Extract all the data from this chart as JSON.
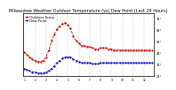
{
  "title": "Milwaukee Weather Outdoor Temperature (vs) Dew Point (Last 24 Hours)",
  "title_fontsize": 3.5,
  "background_color": "#ffffff",
  "grid_color": "#888888",
  "x_tick_labels": [
    "1",
    "",
    "2",
    "",
    "3",
    "",
    "4",
    "",
    "5",
    "",
    "6",
    "",
    "7",
    "",
    "8",
    "",
    "9",
    "",
    "10",
    "",
    "11",
    "",
    "12",
    "",
    "1",
    "",
    "2",
    "",
    "3",
    "",
    "4",
    "",
    "5",
    "",
    "6",
    "",
    "7",
    "",
    "8",
    "",
    "9",
    "",
    "10",
    "",
    "11",
    "",
    "12",
    ""
  ],
  "ylim": [
    24,
    78
  ],
  "y_ticks": [
    24,
    34,
    44,
    54,
    64,
    74
  ],
  "y_tick_labels": [
    "24°",
    "34°",
    "44°",
    "54°",
    "64°",
    "74°"
  ],
  "temp_color": "#cc0000",
  "dew_color": "#0000cc",
  "temp_values": [
    44,
    42,
    40,
    38,
    37,
    36,
    36,
    37,
    40,
    46,
    54,
    60,
    64,
    67,
    69,
    70,
    68,
    65,
    58,
    54,
    52,
    50,
    50,
    49,
    49,
    48,
    47,
    47,
    48,
    48,
    48,
    47,
    47,
    46,
    46,
    46,
    46,
    46,
    46,
    46,
    46,
    46,
    46,
    46,
    46,
    46,
    46,
    46
  ],
  "dew_values": [
    30,
    29,
    28,
    27,
    27,
    26,
    26,
    26,
    27,
    28,
    30,
    32,
    35,
    37,
    39,
    40,
    40,
    40,
    38,
    37,
    36,
    35,
    35,
    35,
    35,
    34,
    34,
    34,
    35,
    35,
    35,
    35,
    35,
    35,
    35,
    35,
    35,
    35,
    35,
    35,
    35,
    35,
    35,
    35,
    35,
    35,
    35,
    35
  ],
  "n_points": 48,
  "grid_x_positions": [
    0,
    4,
    8,
    12,
    16,
    20,
    24,
    28,
    32,
    36,
    40,
    44
  ],
  "line_width": 0.6,
  "marker_size": 1.2,
  "legend_temp": "Outdoor Temp",
  "legend_dew": "Dew Point",
  "legend_fontsize": 2.8
}
